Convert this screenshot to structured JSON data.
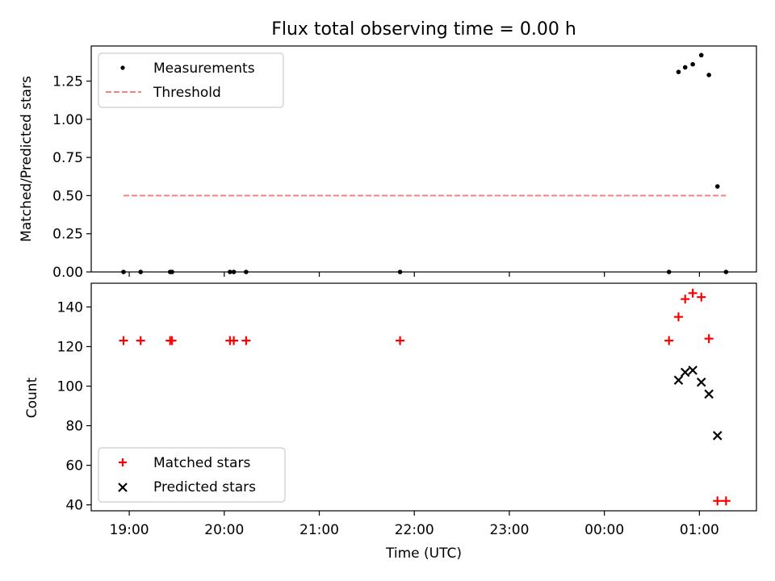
{
  "chart_data": [
    {
      "type": "scatter",
      "title": "Flux total observing time = 0.00 h",
      "xlabel": "",
      "ylabel": "Matched/Predicted stars",
      "xlim_hours": [
        18.6,
        25.6
      ],
      "ylim": [
        0,
        1.48
      ],
      "yticks": [
        0.0,
        0.25,
        0.5,
        0.75,
        1.0,
        1.25
      ],
      "ytick_labels": [
        "0.00",
        "0.25",
        "0.50",
        "0.75",
        "1.00",
        "1.25"
      ],
      "legend": {
        "position": "upper-left",
        "entries": [
          "Measurements",
          "Threshold"
        ]
      },
      "series": [
        {
          "name": "Measurements",
          "color": "#000000",
          "marker": "dot",
          "x": [
            18.94,
            19.12,
            19.43,
            19.45,
            20.06,
            20.1,
            20.23,
            21.85,
            24.68,
            24.78,
            24.85,
            24.93,
            25.02,
            25.1,
            25.19,
            25.28
          ],
          "y": [
            0,
            0,
            0,
            0,
            0,
            0,
            0,
            0,
            0,
            1.31,
            1.34,
            1.36,
            1.42,
            1.29,
            0.56,
            0
          ]
        },
        {
          "name": "Threshold",
          "color": "#ff7f7f",
          "style": "dashed-line",
          "x": [
            18.94,
            25.28
          ],
          "y": [
            0.5,
            0.5
          ]
        }
      ]
    },
    {
      "type": "scatter",
      "title": "",
      "xlabel": "Time (UTC)",
      "ylabel": "Count",
      "xlim_hours": [
        18.6,
        25.6
      ],
      "ylim": [
        37,
        152
      ],
      "xticks_hours": [
        19,
        20,
        21,
        22,
        23,
        24,
        25
      ],
      "xtick_labels": [
        "19:00",
        "20:00",
        "21:00",
        "22:00",
        "23:00",
        "00:00",
        "01:00"
      ],
      "yticks": [
        40,
        60,
        80,
        100,
        120,
        140
      ],
      "ytick_labels": [
        "40",
        "60",
        "80",
        "100",
        "120",
        "140"
      ],
      "legend": {
        "position": "lower-left",
        "entries": [
          "Matched stars",
          "Predicted stars"
        ]
      },
      "series": [
        {
          "name": "Matched stars",
          "color": "#ff0000",
          "marker": "plus",
          "x": [
            18.94,
            19.12,
            19.43,
            19.45,
            20.06,
            20.1,
            20.23,
            21.85,
            24.68,
            24.78,
            24.85,
            24.93,
            25.02,
            25.1,
            25.19,
            25.28
          ],
          "y": [
            123,
            123,
            123,
            123,
            123,
            123,
            123,
            123,
            123,
            135,
            144,
            147,
            145,
            124,
            42,
            42
          ]
        },
        {
          "name": "Predicted stars",
          "color": "#000000",
          "marker": "x",
          "x": [
            24.78,
            24.85,
            24.93,
            25.02,
            25.1,
            25.19
          ],
          "y": [
            103,
            107,
            108,
            102,
            96,
            75
          ]
        }
      ]
    }
  ]
}
